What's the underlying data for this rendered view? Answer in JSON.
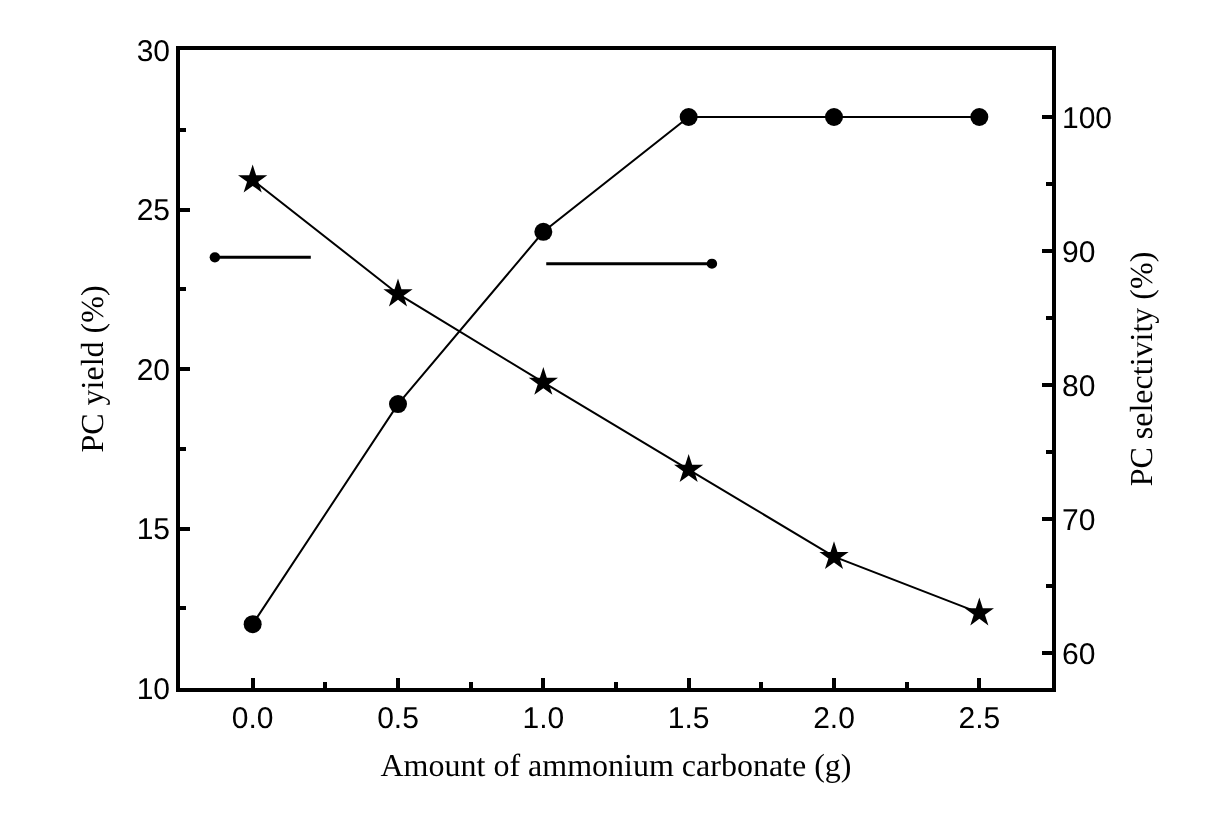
{
  "chart_data": {
    "type": "line",
    "xlabel": "Amount of ammonium carbonate (g)",
    "ylabel": "PC yield (%)",
    "y2label": "PC selectivity (%)",
    "x": [
      0.0,
      0.5,
      1.0,
      1.5,
      2.0,
      2.5
    ],
    "series": [
      {
        "color": "#000000",
        "marker": "circle",
        "values": [
          12.0,
          18.9,
          24.3,
          27.9,
          27.9,
          27.9
        ]
      },
      {
        "color": "#000000",
        "marker": "star",
        "axis": "y2",
        "values": [
          95.3,
          86.8,
          80.2,
          73.7,
          67.2,
          63.0
        ]
      }
    ],
    "xlim": [
      -0.25,
      2.75
    ],
    "xticks": [
      {
        "value": 0,
        "label": "0.0"
      },
      {
        "value": 0.5,
        "label": "0.5"
      },
      {
        "value": 1,
        "label": "1.0"
      },
      {
        "value": 1.5,
        "label": "1.5"
      },
      {
        "value": 2,
        "label": "2.0"
      },
      {
        "value": 2.5,
        "label": "2.5"
      }
    ],
    "ylim": [
      10,
      30
    ],
    "yticks": [
      10,
      15,
      20,
      25,
      30
    ],
    "y2lim": [
      57.4,
      105.0
    ],
    "y2ticks": [
      60,
      70,
      80,
      90,
      100
    ],
    "line_style": "solid"
  }
}
